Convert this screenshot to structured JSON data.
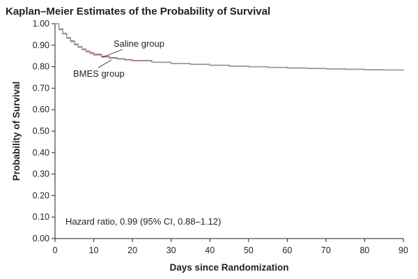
{
  "chart_data": {
    "type": "line",
    "title": "Kaplan–Meier Estimates of the Probability of Survival",
    "xlabel": "Days since Randomization",
    "ylabel": "Probability of Survival",
    "xlim": [
      0,
      90
    ],
    "ylim": [
      0,
      1
    ],
    "x_ticks": [
      0,
      10,
      20,
      30,
      40,
      50,
      60,
      70,
      80,
      90
    ],
    "x_tick_labels": [
      "0",
      "10",
      "20",
      "30",
      "40",
      "50",
      "60",
      "70",
      "80",
      "90"
    ],
    "y_ticks": [
      0,
      0.1,
      0.2,
      0.3,
      0.4,
      0.5,
      0.6,
      0.7,
      0.8,
      0.9,
      1.0
    ],
    "y_tick_labels": [
      "0.00",
      "0.10",
      "0.20",
      "0.30",
      "0.40",
      "0.50",
      "0.60",
      "0.70",
      "0.80",
      "0.90",
      "1.00"
    ],
    "grid": false,
    "series": [
      {
        "name": "Saline group",
        "color": "#c0504d",
        "x": [
          0,
          1,
          2,
          3,
          4,
          5,
          6,
          7,
          8,
          9,
          10,
          12,
          14,
          16,
          18,
          20,
          25,
          30,
          35,
          40,
          45,
          50,
          55,
          60,
          65,
          70,
          75,
          80,
          85,
          90
        ],
        "y": [
          1.0,
          0.975,
          0.955,
          0.935,
          0.92,
          0.905,
          0.893,
          0.882,
          0.873,
          0.865,
          0.858,
          0.848,
          0.842,
          0.837,
          0.833,
          0.829,
          0.821,
          0.815,
          0.811,
          0.807,
          0.803,
          0.8,
          0.797,
          0.794,
          0.792,
          0.79,
          0.788,
          0.786,
          0.785,
          0.784
        ]
      },
      {
        "name": "BMES group",
        "color": "#8a9ba8",
        "x": [
          0,
          1,
          2,
          3,
          4,
          5,
          6,
          7,
          8,
          9,
          10,
          12,
          14,
          16,
          18,
          20,
          25,
          30,
          35,
          40,
          45,
          50,
          55,
          60,
          65,
          70,
          75,
          80,
          85,
          90
        ],
        "y": [
          1.0,
          0.972,
          0.952,
          0.932,
          0.916,
          0.902,
          0.89,
          0.879,
          0.869,
          0.861,
          0.854,
          0.845,
          0.839,
          0.835,
          0.831,
          0.827,
          0.82,
          0.814,
          0.81,
          0.806,
          0.802,
          0.799,
          0.796,
          0.793,
          0.791,
          0.789,
          0.787,
          0.785,
          0.784,
          0.783
        ]
      }
    ],
    "annotations": [
      {
        "text": "Saline group",
        "points_to": "Saline group"
      },
      {
        "text": "BMES group",
        "points_to": "BMES group"
      },
      {
        "text": "Hazard ratio, 0.99 (95% CI, 0.88–1.12)"
      }
    ]
  }
}
